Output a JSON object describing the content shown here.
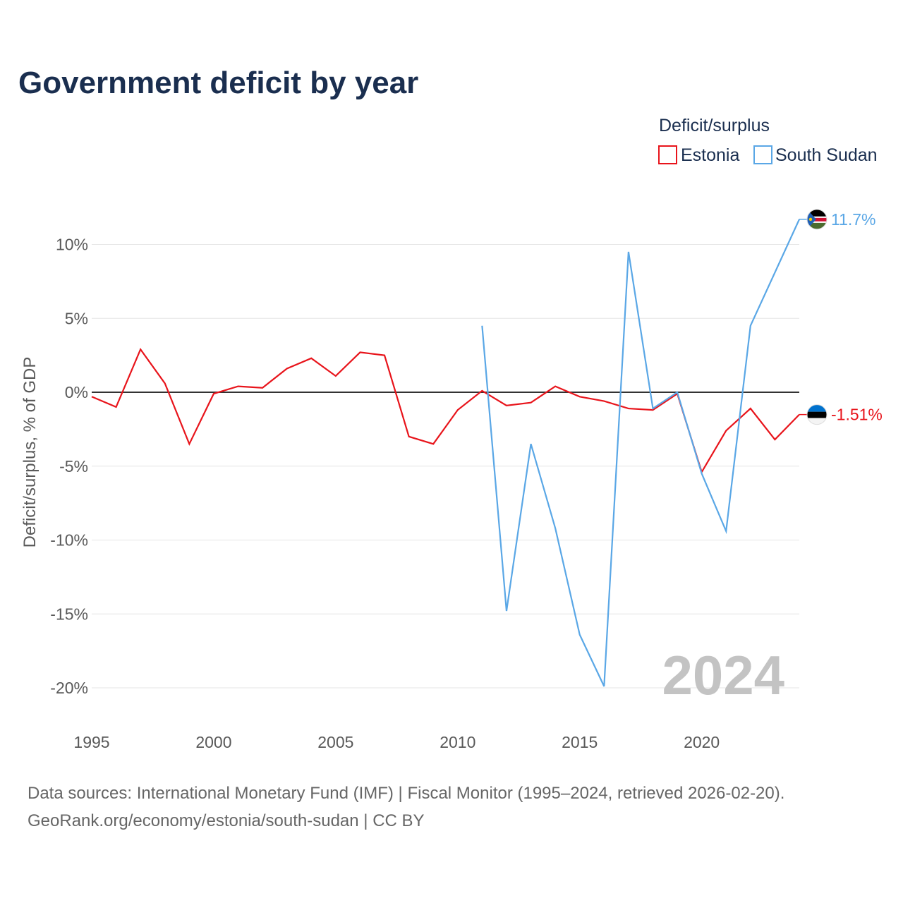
{
  "chart_data": {
    "type": "line",
    "title": "Government deficit by year",
    "legend_title": "Deficit/surplus",
    "ylabel": "Deficit/surplus, % of GDP",
    "xlabel": "",
    "x_ticks": [
      1995,
      2000,
      2005,
      2010,
      2015,
      2020
    ],
    "y_ticks": [
      10,
      5,
      0,
      -5,
      -10,
      -15,
      -20
    ],
    "y_tick_labels": [
      "10%",
      "5%",
      "0%",
      "-5%",
      "-10%",
      "-15%",
      "-20%"
    ],
    "xlim": [
      1995,
      2024
    ],
    "ylim": [
      -20,
      12
    ],
    "watermark_year": "2024",
    "series": [
      {
        "name": "Estonia",
        "color": "#e8141b",
        "end_label": "-1.51%",
        "x": [
          1995,
          1996,
          1997,
          1998,
          1999,
          2000,
          2001,
          2002,
          2003,
          2004,
          2005,
          2006,
          2007,
          2008,
          2009,
          2010,
          2011,
          2012,
          2013,
          2014,
          2015,
          2016,
          2017,
          2018,
          2019,
          2020,
          2021,
          2022,
          2023,
          2024
        ],
        "values": [
          -0.3,
          -1.0,
          2.9,
          0.6,
          -3.5,
          -0.1,
          0.4,
          0.3,
          1.6,
          2.3,
          1.1,
          2.7,
          2.5,
          -3.0,
          -3.5,
          -1.2,
          0.1,
          -0.9,
          -0.7,
          0.4,
          -0.3,
          -0.6,
          -1.1,
          -1.2,
          -0.1,
          -5.4,
          -2.6,
          -1.1,
          -3.2,
          -1.51
        ]
      },
      {
        "name": "South Sudan",
        "color": "#5aa7e6",
        "end_label": "11.7%",
        "x": [
          2011,
          2012,
          2013,
          2014,
          2015,
          2016,
          2017,
          2018,
          2019,
          2020,
          2021,
          2022,
          2023,
          2024
        ],
        "values": [
          4.5,
          -14.8,
          -3.5,
          -9.2,
          -16.4,
          -19.9,
          9.5,
          -1.1,
          0.0,
          -5.5,
          -9.4,
          4.5,
          8.1,
          11.7
        ]
      }
    ]
  },
  "footer": {
    "source_line": "Data sources: International Monetary Fund (IMF) | Fiscal Monitor (1995–2024, retrieved 2026-02-20).",
    "credit_line": "GeoRank.org/economy/estonia/south-sudan | CC BY"
  }
}
